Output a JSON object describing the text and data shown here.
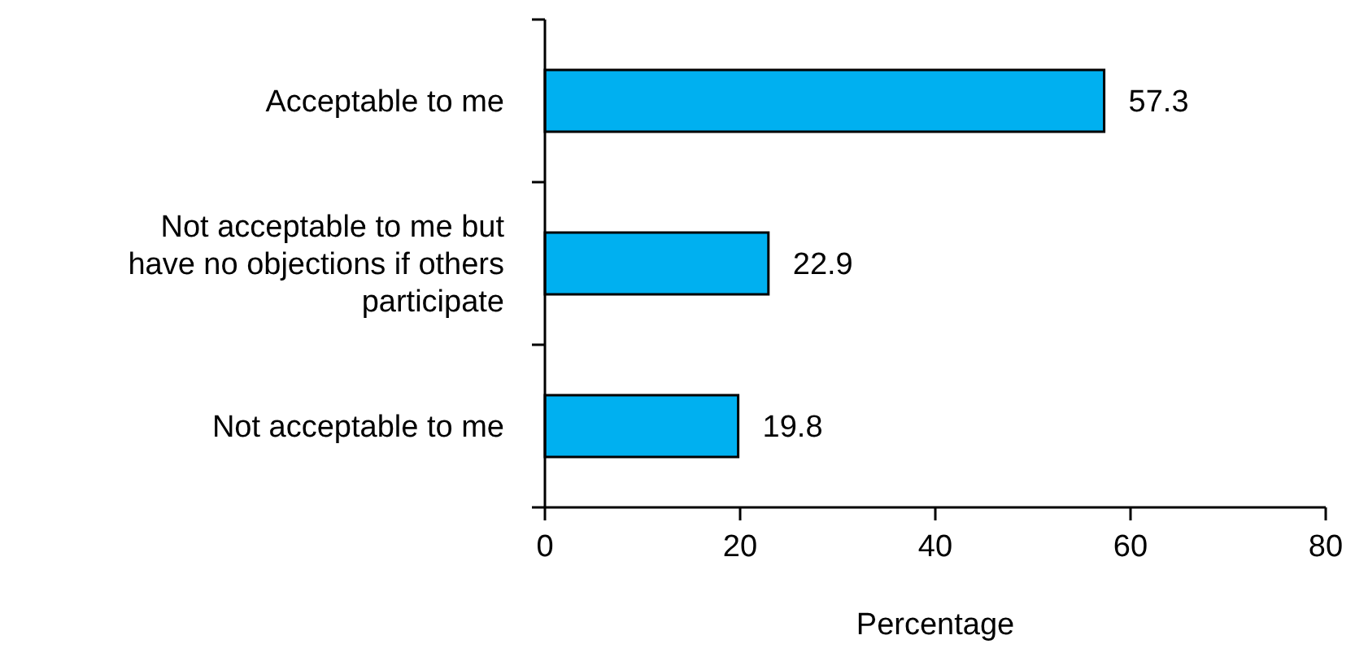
{
  "chart_data": {
    "type": "bar",
    "orientation": "horizontal",
    "categories": [
      "Acceptable to me",
      "Not acceptable to me but have no objections if others participate",
      "Not acceptable to me"
    ],
    "values": [
      57.3,
      22.9,
      19.8
    ],
    "color": "#00b0f0",
    "xlabel": "Percentage",
    "xlim": [
      0,
      80
    ],
    "xticks": [
      0,
      20,
      40,
      60,
      80
    ],
    "data_labels": true
  }
}
